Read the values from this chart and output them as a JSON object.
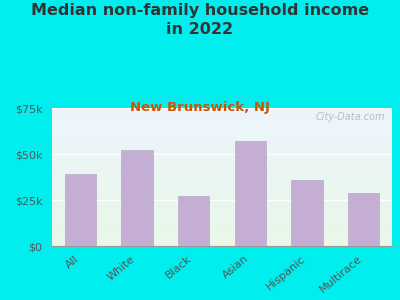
{
  "title_line1": "Median non-family household income",
  "title_line2": "in 2022",
  "subtitle": "New Brunswick, NJ",
  "categories": [
    "All",
    "White",
    "Black",
    "Asian",
    "Hispanic",
    "Multirace"
  ],
  "values": [
    39000,
    52000,
    27000,
    57000,
    36000,
    29000
  ],
  "bar_color": "#c4aed4",
  "bar_edge_color": "#b09fc0",
  "bg_outer": "#00eeee",
  "title_color": "#333333",
  "subtitle_color": "#cc5500",
  "tick_color": "#555555",
  "watermark": "City-Data.com",
  "ylim": [
    0,
    75000
  ],
  "yticks": [
    0,
    25000,
    50000,
    75000
  ],
  "ytick_labels": [
    "$0",
    "$25k",
    "$50k",
    "$75k"
  ],
  "title_fontsize": 11.5,
  "subtitle_fontsize": 9.5,
  "tick_fontsize": 8,
  "xlabel_fontsize": 8
}
